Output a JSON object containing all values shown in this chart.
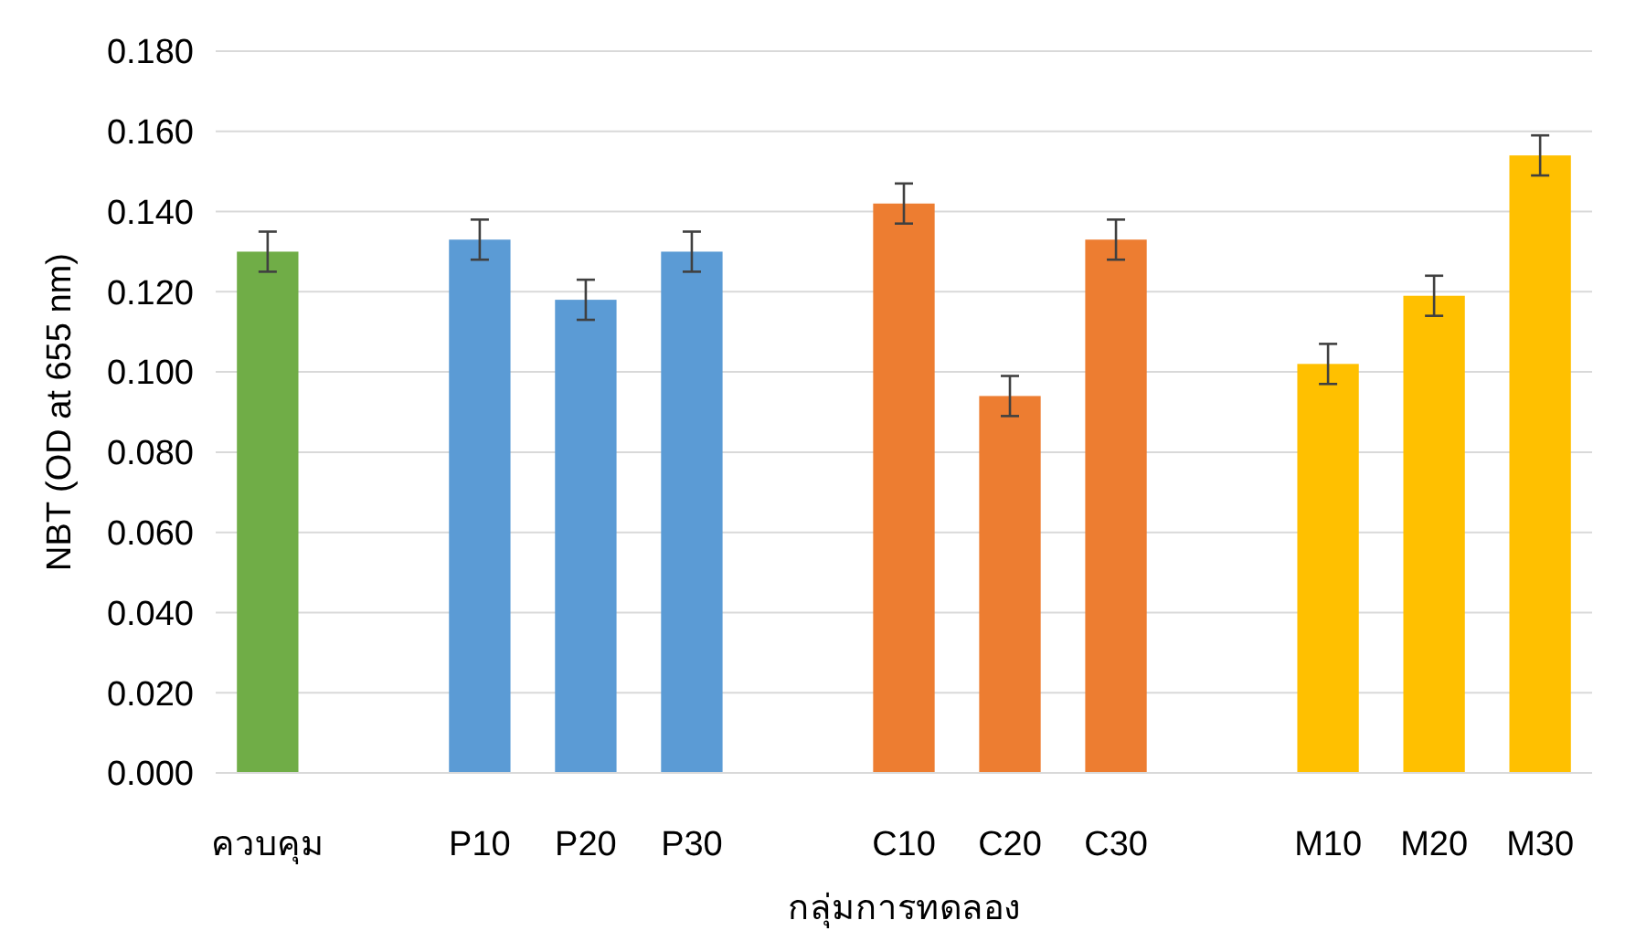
{
  "chart_data": {
    "type": "bar",
    "xlabel": "กลุ่มการทดลอง",
    "ylabel": "NBT (OD at 655 nm)",
    "categories": [
      "ควบคุม",
      null,
      "P10",
      "P20",
      "P30",
      null,
      "C10",
      "C20",
      "C30",
      null,
      "M10",
      "M20",
      "M30"
    ],
    "values": [
      0.13,
      null,
      0.133,
      0.118,
      0.13,
      null,
      0.142,
      0.094,
      0.133,
      null,
      0.102,
      0.119,
      0.154
    ],
    "errors": [
      0.005,
      null,
      0.005,
      0.005,
      0.005,
      null,
      0.005,
      0.005,
      0.005,
      null,
      0.005,
      0.005,
      0.005
    ],
    "colors": [
      "#70ad47",
      null,
      "#5b9bd5",
      "#5b9bd5",
      "#5b9bd5",
      null,
      "#ed7d31",
      "#ed7d31",
      "#ed7d31",
      null,
      "#ffc000",
      "#ffc000",
      "#ffc000"
    ],
    "ylim": [
      0,
      0.18
    ],
    "yticks": [
      {
        "value": 0,
        "label": "0.000"
      },
      {
        "value": 0.02,
        "label": "0.020"
      },
      {
        "value": 0.04,
        "label": "0.040"
      },
      {
        "value": 0.06,
        "label": "0.060"
      },
      {
        "value": 0.08,
        "label": "0.080"
      },
      {
        "value": 0.1,
        "label": "0.100"
      },
      {
        "value": 0.12,
        "label": "0.120"
      },
      {
        "value": 0.14,
        "label": "0.140"
      },
      {
        "value": 0.16,
        "label": "0.160"
      },
      {
        "value": 0.18,
        "label": "0.180"
      }
    ],
    "grid": "y"
  }
}
